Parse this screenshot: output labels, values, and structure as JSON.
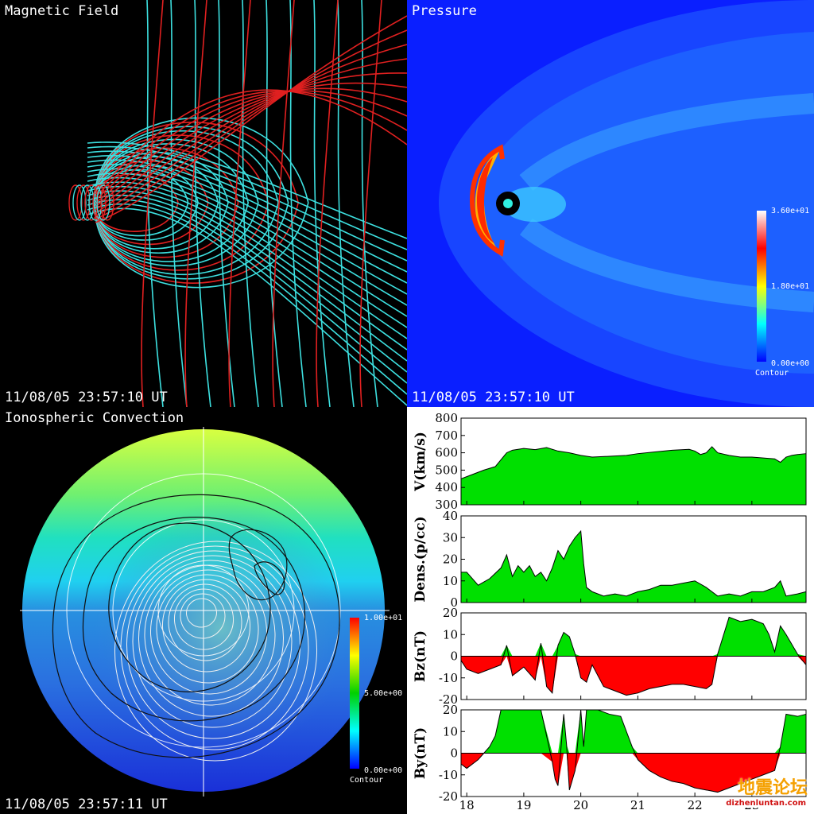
{
  "panels": {
    "magnetic": {
      "title": "Magnetic Field",
      "timestamp": "11/08/05 23:57:10 UT"
    },
    "pressure": {
      "title": "Pressure",
      "timestamp": "11/08/05 23:57:10 UT",
      "colorbar": {
        "max_label": "3.60e+01",
        "mid_label": "1.80e+01",
        "min_label": "0.00e+00",
        "caption": "Contour"
      }
    },
    "ionosphere": {
      "title": "Ionospheric Convection",
      "timestamp": "11/08/05 23:57:11 UT",
      "colorbar": {
        "max_label": "1.00e+01",
        "mid_label": "5.00e+00",
        "min_label": "0.00e+00",
        "caption": "Contour"
      }
    }
  },
  "watermark": {
    "text": "地震论坛",
    "url": "dizhenluntan.com"
  },
  "colors": {
    "positive": "#00e000",
    "negative": "#ff0000",
    "field_cyan": "#3de0e0",
    "field_red": "#e02020"
  },
  "chart_data": {
    "type": "area",
    "x_axis": {
      "ticks": [
        18,
        19,
        20,
        21,
        22,
        23
      ],
      "range": [
        17.9,
        23.95
      ]
    },
    "panels": [
      {
        "ylabel": "V(km/s)",
        "ylim": [
          300,
          800
        ],
        "yticks": [
          300,
          400,
          500,
          600,
          700,
          800
        ],
        "baseline": 300,
        "x": [
          17.9,
          18.1,
          18.3,
          18.5,
          18.6,
          18.7,
          18.8,
          19.0,
          19.2,
          19.4,
          19.6,
          19.8,
          20.0,
          20.2,
          20.5,
          20.8,
          21.0,
          21.3,
          21.6,
          21.9,
          22.0,
          22.1,
          22.2,
          22.3,
          22.4,
          22.6,
          22.8,
          23.0,
          23.2,
          23.4,
          23.5,
          23.6,
          23.7,
          23.8,
          23.95
        ],
        "y": [
          450,
          475,
          500,
          520,
          560,
          600,
          615,
          625,
          618,
          630,
          610,
          600,
          585,
          575,
          580,
          585,
          595,
          605,
          615,
          620,
          610,
          590,
          600,
          635,
          600,
          585,
          575,
          575,
          570,
          565,
          545,
          575,
          585,
          590,
          595
        ]
      },
      {
        "ylabel": "Dens.(p/cc)",
        "ylim": [
          0,
          40
        ],
        "yticks": [
          0,
          10,
          20,
          30,
          40
        ],
        "baseline": 0,
        "x": [
          17.9,
          18.0,
          18.2,
          18.4,
          18.6,
          18.7,
          18.8,
          18.9,
          19.0,
          19.1,
          19.2,
          19.3,
          19.4,
          19.5,
          19.6,
          19.7,
          19.8,
          19.9,
          20.0,
          20.05,
          20.1,
          20.2,
          20.4,
          20.6,
          20.8,
          21.0,
          21.2,
          21.4,
          21.6,
          21.8,
          22.0,
          22.2,
          22.4,
          22.6,
          22.8,
          23.0,
          23.2,
          23.4,
          23.5,
          23.6,
          23.8,
          23.95
        ],
        "y": [
          14,
          14,
          8,
          11,
          16,
          22,
          12,
          17,
          14,
          17,
          12,
          14,
          10,
          16,
          24,
          20,
          26,
          30,
          33,
          18,
          7,
          5,
          3,
          4,
          3,
          5,
          6,
          8,
          8,
          9,
          10,
          7,
          3,
          4,
          3,
          5,
          5,
          7,
          10,
          3,
          4,
          5
        ]
      },
      {
        "ylabel": "Bz(nT)",
        "ylim": [
          -20,
          20
        ],
        "yticks": [
          -20,
          -10,
          0,
          10,
          20
        ],
        "baseline": 0,
        "x": [
          17.9,
          18.0,
          18.2,
          18.4,
          18.6,
          18.7,
          18.8,
          18.9,
          19.0,
          19.1,
          19.2,
          19.3,
          19.4,
          19.5,
          19.6,
          19.7,
          19.8,
          19.9,
          20.0,
          20.1,
          20.2,
          20.4,
          20.6,
          20.8,
          21.0,
          21.2,
          21.4,
          21.6,
          21.8,
          22.0,
          22.2,
          22.3,
          22.4,
          22.6,
          22.8,
          23.0,
          23.2,
          23.3,
          23.4,
          23.5,
          23.6,
          23.8,
          23.95
        ],
        "y": [
          -2,
          -6,
          -8,
          -6,
          -4,
          5,
          -9,
          -7,
          -5,
          -8,
          -11,
          6,
          -14,
          -17,
          5,
          11,
          9,
          1,
          -10,
          -12,
          -4,
          -14,
          -16,
          -18,
          -17,
          -15,
          -14,
          -13,
          -13,
          -14,
          -15,
          -13,
          1,
          18,
          16,
          17,
          15,
          10,
          2,
          14,
          10,
          1,
          -4
        ]
      },
      {
        "ylabel": "By(nT)",
        "ylim": [
          -20,
          20
        ],
        "yticks": [
          -20,
          -10,
          0,
          10,
          20
        ],
        "baseline": 0,
        "x": [
          17.9,
          18.0,
          18.2,
          18.3,
          18.4,
          18.5,
          18.6,
          18.7,
          19.0,
          19.3,
          19.5,
          19.55,
          19.6,
          19.7,
          19.75,
          19.8,
          19.9,
          20.0,
          20.05,
          20.1,
          20.3,
          20.5,
          20.7,
          20.9,
          21.0,
          21.2,
          21.4,
          21.6,
          21.8,
          22.0,
          22.2,
          22.4,
          22.6,
          22.8,
          23.0,
          23.2,
          23.4,
          23.5,
          23.6,
          23.8,
          23.95
        ],
        "y": [
          -5,
          -7,
          -3,
          0,
          3,
          8,
          20,
          20,
          20,
          20,
          -4,
          -12,
          -15,
          18,
          4,
          -17,
          -8,
          20,
          3,
          20,
          20,
          18,
          17,
          3,
          -3,
          -8,
          -11,
          -13,
          -14,
          -16,
          -17,
          -18,
          -16,
          -14,
          -12,
          -10,
          -8,
          3,
          18,
          17,
          18
        ]
      }
    ]
  }
}
